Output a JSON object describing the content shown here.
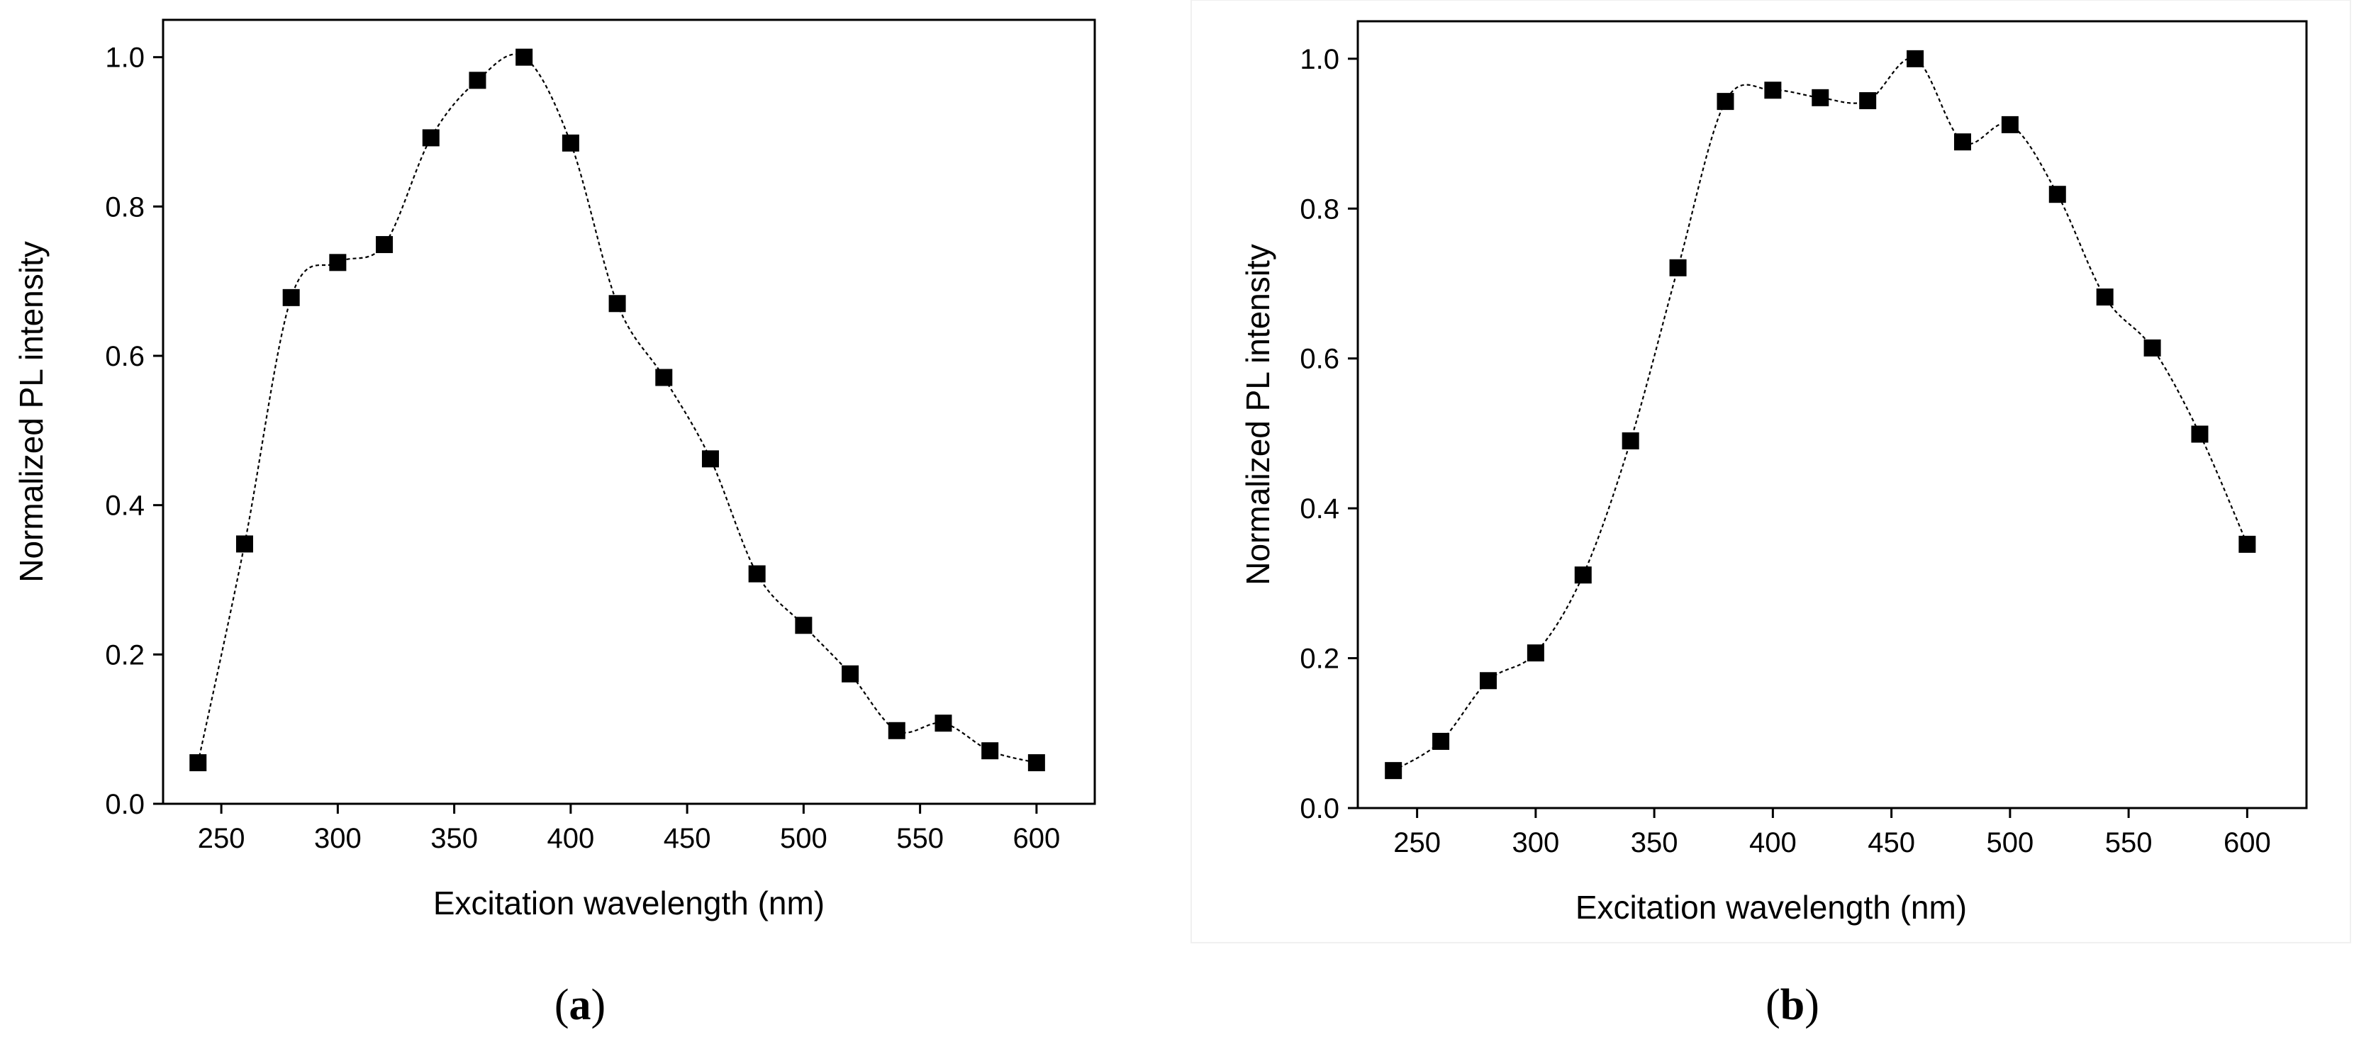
{
  "chart_data": [
    {
      "id": "a",
      "type": "scatter",
      "panel_label": "a",
      "title": "",
      "xlabel": "Excitation wavelength (nm)",
      "ylabel": "Normalized PL intensity",
      "xlim": [
        225,
        625
      ],
      "ylim": [
        0,
        1.05
      ],
      "xticks": [
        250,
        300,
        350,
        400,
        450,
        500,
        550,
        600
      ],
      "yticks": [
        0.0,
        0.2,
        0.4,
        0.6,
        0.8,
        1.0
      ],
      "xtick_labels": [
        "250",
        "300",
        "350",
        "400",
        "450",
        "500",
        "550",
        "600"
      ],
      "ytick_labels": [
        "0.0",
        "0.2",
        "0.4",
        "0.6",
        "0.8",
        "1.0"
      ],
      "marker": "square",
      "fit": "smooth-dotted-line",
      "series": [
        {
          "name": "",
          "x": [
            240,
            260,
            280,
            300,
            320,
            340,
            360,
            380,
            400,
            420,
            440,
            460,
            480,
            500,
            520,
            540,
            560,
            580,
            600
          ],
          "y": [
            0.055,
            0.348,
            0.678,
            0.725,
            0.749,
            0.892,
            0.969,
            1.0,
            0.885,
            0.67,
            0.571,
            0.462,
            0.308,
            0.239,
            0.174,
            0.098,
            0.108,
            0.071,
            0.055
          ]
        }
      ]
    },
    {
      "id": "b",
      "type": "scatter",
      "panel_label": "b",
      "title": "",
      "xlabel": "Excitation wavelength (nm)",
      "ylabel": "Normalized PL intensity",
      "xlim": [
        225,
        625
      ],
      "ylim": [
        0,
        1.05
      ],
      "xticks": [
        250,
        300,
        350,
        400,
        450,
        500,
        550,
        600
      ],
      "yticks": [
        0.0,
        0.2,
        0.4,
        0.6,
        0.8,
        1.0
      ],
      "xtick_labels": [
        "250",
        "300",
        "350",
        "400",
        "450",
        "500",
        "550",
        "600"
      ],
      "ytick_labels": [
        "0.0",
        "0.2",
        "0.4",
        "0.6",
        "0.8",
        "1.0"
      ],
      "marker": "square",
      "fit": "smooth-dotted-line",
      "series": [
        {
          "name": "",
          "x": [
            240,
            260,
            280,
            300,
            320,
            340,
            360,
            380,
            400,
            420,
            440,
            460,
            480,
            500,
            520,
            540,
            560,
            580,
            600
          ],
          "y": [
            0.05,
            0.089,
            0.17,
            0.207,
            0.311,
            0.49,
            0.721,
            0.943,
            0.958,
            0.948,
            0.944,
            1.0,
            0.889,
            0.912,
            0.819,
            0.682,
            0.614,
            0.499,
            0.352
          ]
        }
      ]
    }
  ],
  "colors": {
    "marker": "#000000",
    "line": "#000000",
    "axes": "#000000",
    "background": "#ffffff"
  }
}
